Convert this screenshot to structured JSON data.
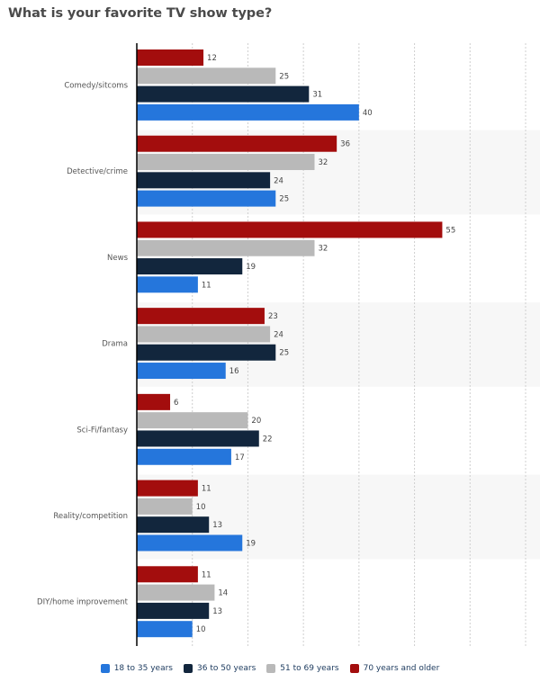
{
  "chart_data": {
    "type": "bar",
    "orientation": "horizontal",
    "title": "What is your favorite TV show type?",
    "xlabel": "",
    "ylabel": "",
    "xlim": [
      0,
      70
    ],
    "grid": true,
    "tick_labels_shown": false,
    "legend_position": "bottom",
    "categories": [
      "Comedy/sitcoms",
      "Detective/crime",
      "News",
      "Drama",
      "Sci-Fi/fantasy",
      "Reality/competition",
      "DIY/home improvement"
    ],
    "series": [
      {
        "name": "70 years and older",
        "color": "#a30d0d",
        "values": [
          12,
          36,
          55,
          23,
          6,
          11,
          11
        ]
      },
      {
        "name": "51 to 69 years",
        "color": "#b9b9b9",
        "values": [
          25,
          32,
          32,
          24,
          20,
          10,
          14
        ]
      },
      {
        "name": "36 to 50 years",
        "color": "#12263d",
        "values": [
          31,
          24,
          19,
          25,
          22,
          13,
          13
        ]
      },
      {
        "name": "18 to 35 years",
        "color": "#2576dc",
        "values": [
          40,
          25,
          11,
          16,
          17,
          19,
          10
        ]
      }
    ],
    "legend_order": [
      "18 to 35 years",
      "36 to 50 years",
      "51 to 69 years",
      "70 years and older"
    ]
  }
}
